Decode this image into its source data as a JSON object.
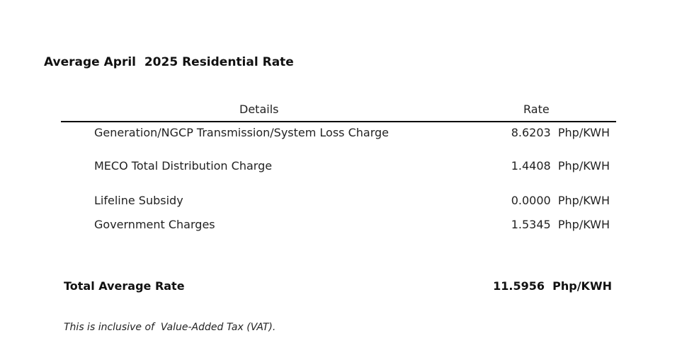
{
  "title": "Average April  2025 Residential Rate",
  "table": {
    "headers": {
      "details": "Details",
      "rate": "Rate"
    },
    "rows": [
      {
        "label": "Generation/NGCP Transmission/System Loss Charge",
        "value": "8.6203  Php/KWH"
      },
      {
        "label": "MECO Total Distribution Charge",
        "value": "1.4408  Php/KWH"
      },
      {
        "label": "Lifeline Subsidy",
        "value": "0.0000  Php/KWH"
      },
      {
        "label": "Government Charges",
        "value": "1.5345  Php/KWH"
      }
    ],
    "total": {
      "label": "Total Average Rate",
      "value": "11.5956  Php/KWH"
    }
  },
  "footnote": "This is inclusive of  Value-Added Tax (VAT)."
}
